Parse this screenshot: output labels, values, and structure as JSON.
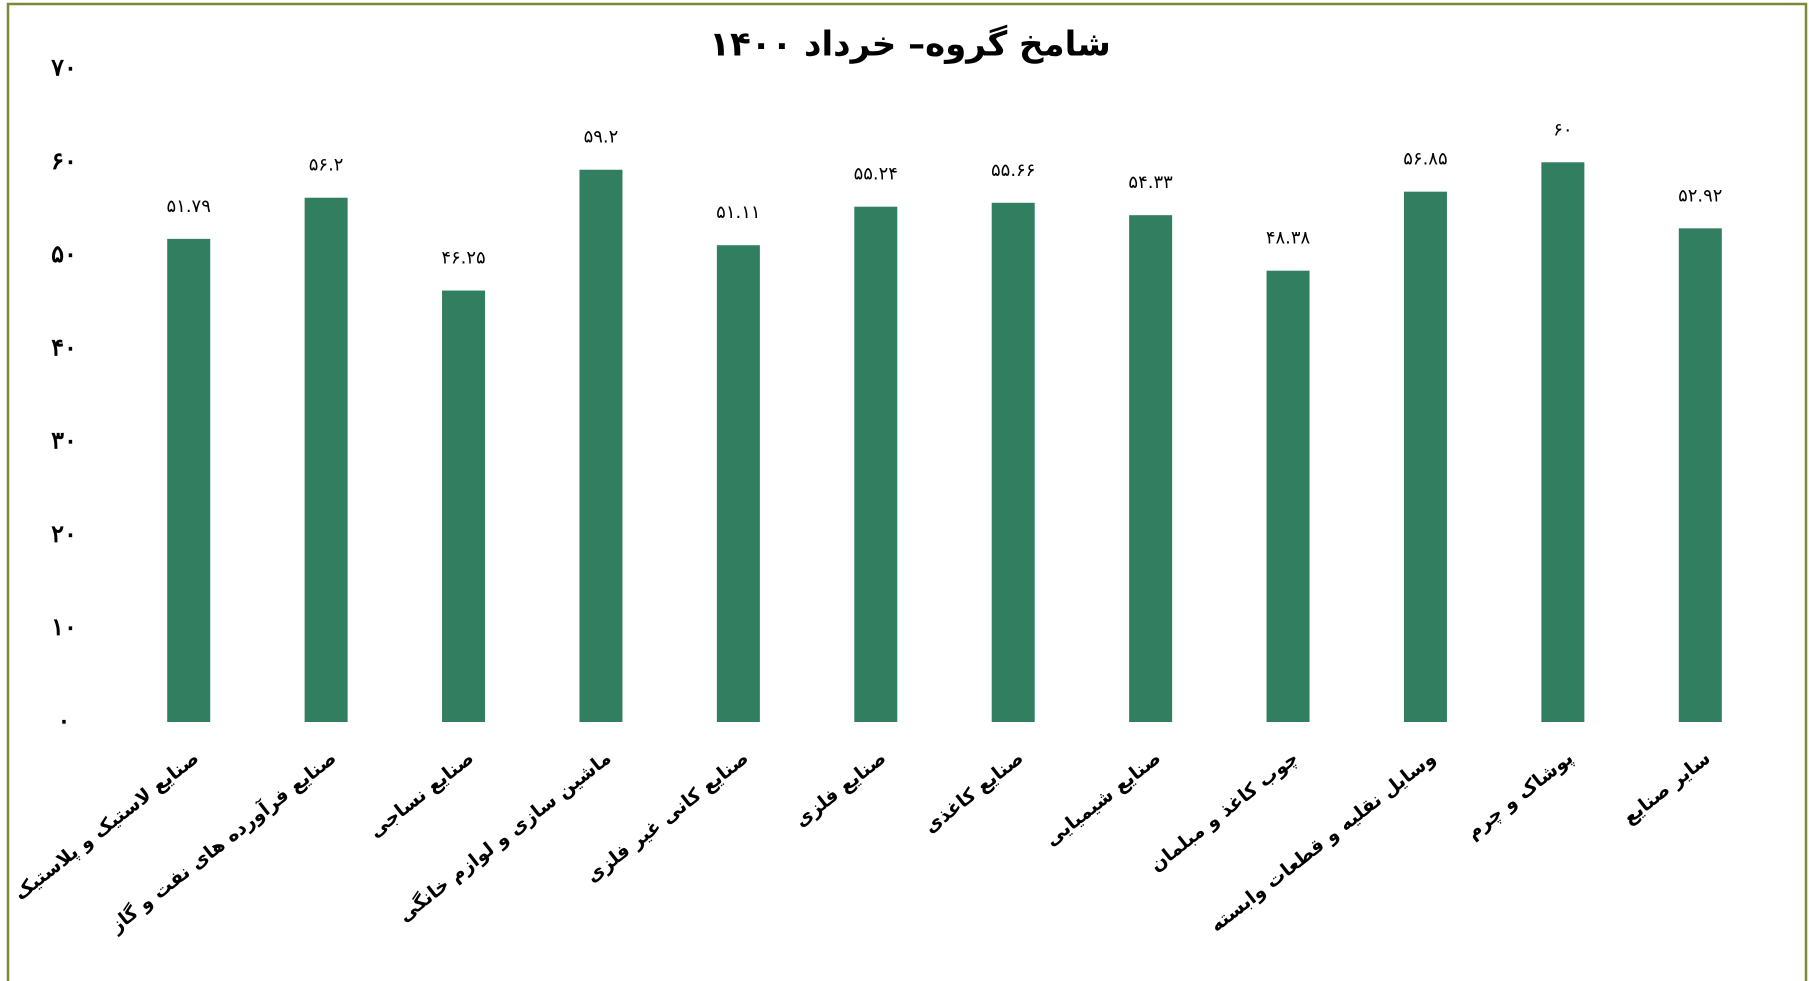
{
  "chart_data": {
    "type": "bar",
    "title": "شامخ گروه– خرداد ۱۴۰۰",
    "categories": [
      "صنایع لاستیک و پلاستیک",
      "صنایع فرآورده های نفت و گاز",
      "صنایع نساجی",
      "ماشین سازی و لوازم خانگی",
      "صنایع کانی غیر فلزی",
      "صنایع فلزی",
      "صنایع کاغذی",
      "صنایع شیمیایی",
      "چوب کاغذ و مبلمان",
      "وسایل نقلیه و قطعات وابسته",
      "پوشاک و چرم",
      "سایر صنایع"
    ],
    "values": [
      51.79,
      56.2,
      46.25,
      59.2,
      51.11,
      55.24,
      55.66,
      54.33,
      48.38,
      56.85,
      60,
      52.92
    ],
    "value_labels": [
      "۵۱.۷۹",
      "۵۶.۲",
      "۴۶.۲۵",
      "۵۹.۲",
      "۵۱.۱۱",
      "۵۵.۲۴",
      "۵۵.۶۶",
      "۵۴.۳۳",
      "۴۸.۳۸",
      "۵۶.۸۵",
      "۶۰",
      "۵۲.۹۲"
    ],
    "color": "#327e60",
    "ylim": [
      0,
      70
    ],
    "yticks": [
      {
        "value": 0,
        "label": "۰"
      },
      {
        "value": 10,
        "label": "۱۰"
      },
      {
        "value": 20,
        "label": "۲۰"
      },
      {
        "value": 30,
        "label": "۳۰"
      },
      {
        "value": 40,
        "label": "۴۰"
      },
      {
        "value": 50,
        "label": "۵۰"
      },
      {
        "value": 60,
        "label": "۶۰"
      },
      {
        "value": 70,
        "label": "۷۰"
      }
    ],
    "grid": false
  }
}
